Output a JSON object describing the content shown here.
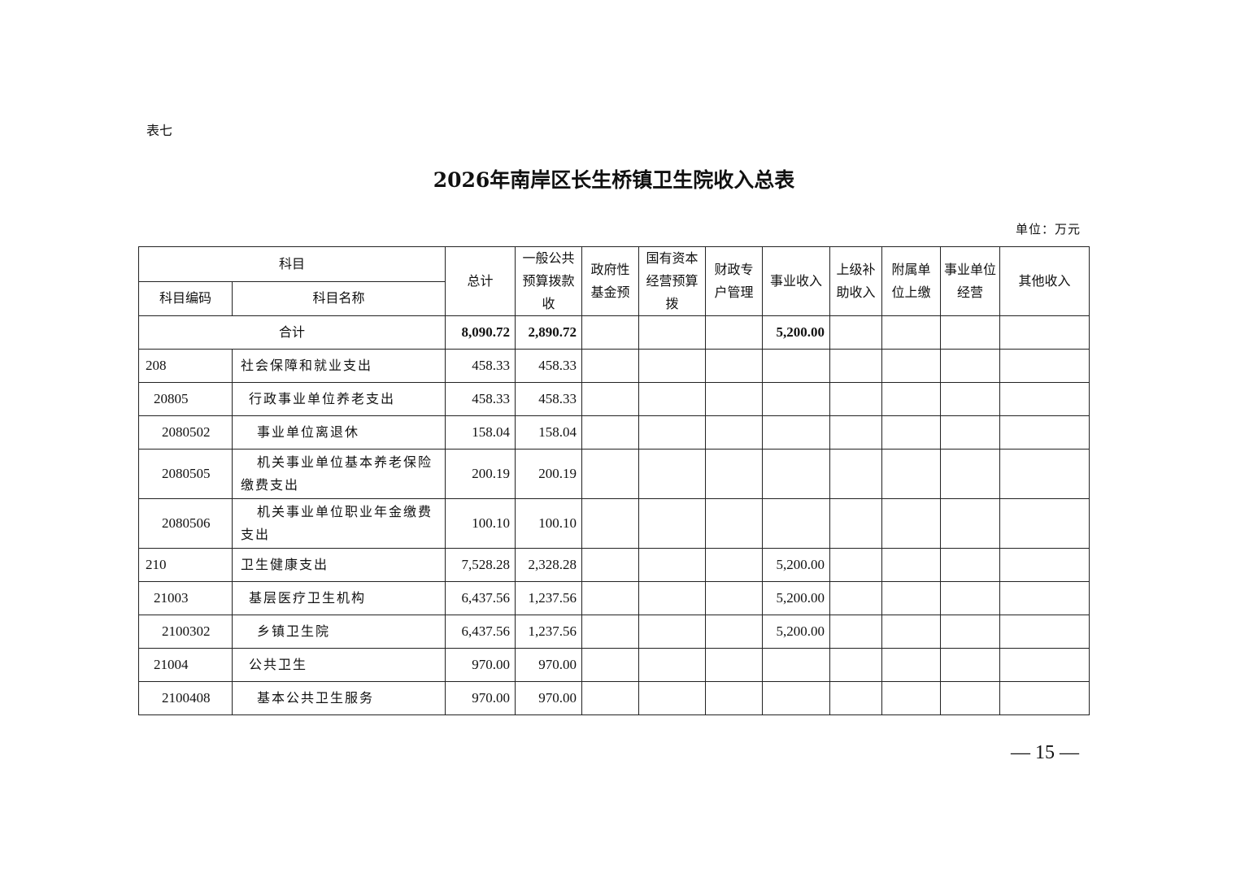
{
  "table_label": "表七",
  "title": "2026年南岸区长生桥镇卫生院收入总表",
  "unit": "单位：万元",
  "headers": {
    "subject": "科目",
    "code": "科目编码",
    "name": "科目名称",
    "columns": [
      "总计",
      "一般公共预算拨款收",
      "政府性基金预",
      "国有资本经营预算拨",
      "财政专户管理",
      "事业收入",
      "上级补助收入",
      "附属单位上缴",
      "事业单位经营",
      "其他收入"
    ]
  },
  "total": {
    "label": "合计",
    "values": [
      "8,090.72",
      "2,890.72",
      "",
      "",
      "",
      "5,200.00",
      "",
      "",
      "",
      ""
    ]
  },
  "rows": [
    {
      "code": "208",
      "name": "社会保障和就业支出",
      "level": 0,
      "values": [
        "458.33",
        "458.33",
        "",
        "",
        "",
        "",
        "",
        "",
        "",
        ""
      ]
    },
    {
      "code": "20805",
      "name": "行政事业单位养老支出",
      "level": 1,
      "values": [
        "458.33",
        "458.33",
        "",
        "",
        "",
        "",
        "",
        "",
        "",
        ""
      ]
    },
    {
      "code": "2080502",
      "name": "事业单位离退休",
      "level": 2,
      "values": [
        "158.04",
        "158.04",
        "",
        "",
        "",
        "",
        "",
        "",
        "",
        ""
      ]
    },
    {
      "code": "2080505",
      "name": "机关事业单位基本养老保险缴费支出",
      "level": 2,
      "values": [
        "200.19",
        "200.19",
        "",
        "",
        "",
        "",
        "",
        "",
        "",
        ""
      ]
    },
    {
      "code": "2080506",
      "name": "机关事业单位职业年金缴费支出",
      "level": 2,
      "values": [
        "100.10",
        "100.10",
        "",
        "",
        "",
        "",
        "",
        "",
        "",
        ""
      ]
    },
    {
      "code": "210",
      "name": "卫生健康支出",
      "level": 0,
      "values": [
        "7,528.28",
        "2,328.28",
        "",
        "",
        "",
        "5,200.00",
        "",
        "",
        "",
        ""
      ]
    },
    {
      "code": "21003",
      "name": "基层医疗卫生机构",
      "level": 1,
      "values": [
        "6,437.56",
        "1,237.56",
        "",
        "",
        "",
        "5,200.00",
        "",
        "",
        "",
        ""
      ]
    },
    {
      "code": "2100302",
      "name": "乡镇卫生院",
      "level": 2,
      "values": [
        "6,437.56",
        "1,237.56",
        "",
        "",
        "",
        "5,200.00",
        "",
        "",
        "",
        ""
      ]
    },
    {
      "code": "21004",
      "name": "公共卫生",
      "level": 1,
      "values": [
        "970.00",
        "970.00",
        "",
        "",
        "",
        "",
        "",
        "",
        "",
        ""
      ]
    },
    {
      "code": "2100408",
      "name": "基本公共卫生服务",
      "level": 2,
      "values": [
        "970.00",
        "970.00",
        "",
        "",
        "",
        "",
        "",
        "",
        "",
        ""
      ]
    }
  ],
  "page_number": "— 15 —"
}
